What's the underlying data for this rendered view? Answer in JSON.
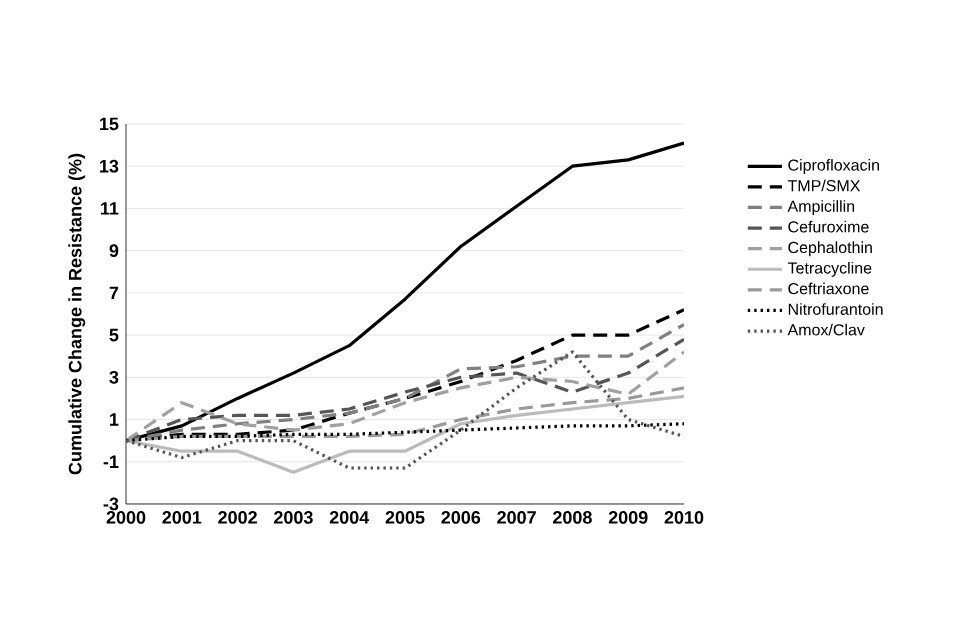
{
  "chart_data": {
    "type": "line",
    "ylabel": "Cumulative Change in Resistance (%)",
    "categories": [
      "2000",
      "2001",
      "2002",
      "2003",
      "2004",
      "2005",
      "2006",
      "2007",
      "2008",
      "2009",
      "2010"
    ],
    "ylim": [
      -3,
      15
    ],
    "yticks": [
      -3,
      -1,
      1,
      3,
      5,
      7,
      9,
      11,
      13,
      15
    ],
    "grid": "y",
    "legend": "right",
    "marker": "none",
    "series": [
      {
        "name": "Ciprofloxacin",
        "color": "#000000",
        "line_style": "solid",
        "values": [
          0,
          0.7,
          2.0,
          3.2,
          4.5,
          6.7,
          9.2,
          11.1,
          13.0,
          13.3,
          14.1
        ]
      },
      {
        "name": "TMP/SMX",
        "color": "#000000",
        "line_style": "dashed",
        "values": [
          0,
          0.3,
          0.3,
          0.5,
          1.3,
          2.0,
          2.8,
          3.8,
          5.0,
          5.0,
          6.2
        ]
      },
      {
        "name": "Ampicillin",
        "color": "#808080",
        "line_style": "dashed",
        "values": [
          0,
          0.5,
          0.8,
          1.0,
          1.3,
          2.0,
          3.4,
          3.5,
          4.0,
          4.0,
          5.5
        ]
      },
      {
        "name": "Cefuroxime",
        "color": "#555555",
        "line_style": "dashed",
        "values": [
          0,
          1.0,
          1.2,
          1.2,
          1.5,
          2.3,
          3.0,
          3.2,
          2.3,
          3.2,
          4.8
        ]
      },
      {
        "name": "Cephalothin",
        "color": "#a0a0a0",
        "line_style": "dashed",
        "values": [
          0,
          1.8,
          0.8,
          0.5,
          0.8,
          1.8,
          2.5,
          3.0,
          2.8,
          2.2,
          4.2
        ]
      },
      {
        "name": "Tetracycline",
        "color": "#bbbbbb",
        "line_style": "solid",
        "values": [
          0,
          -0.5,
          -0.5,
          -1.5,
          -0.5,
          -0.5,
          0.8,
          1.2,
          1.5,
          1.8,
          2.1
        ]
      },
      {
        "name": "Ceftriaxone",
        "color": "#999999",
        "line_style": "dashed",
        "values": [
          0,
          0.2,
          0.2,
          0.2,
          0.2,
          0.3,
          1.0,
          1.5,
          1.8,
          2.0,
          2.5
        ]
      },
      {
        "name": "Nitrofurantoin",
        "color": "#000000",
        "line_style": "dotted",
        "values": [
          0,
          0.2,
          0.2,
          0.3,
          0.3,
          0.4,
          0.5,
          0.6,
          0.7,
          0.7,
          0.8
        ]
      },
      {
        "name": "Amox/Clav",
        "color": "#555555",
        "line_style": "dotted",
        "values": [
          0,
          -0.8,
          0,
          0,
          -1.3,
          -1.3,
          0.5,
          2.5,
          4.2,
          1.0,
          0.2
        ]
      }
    ]
  }
}
